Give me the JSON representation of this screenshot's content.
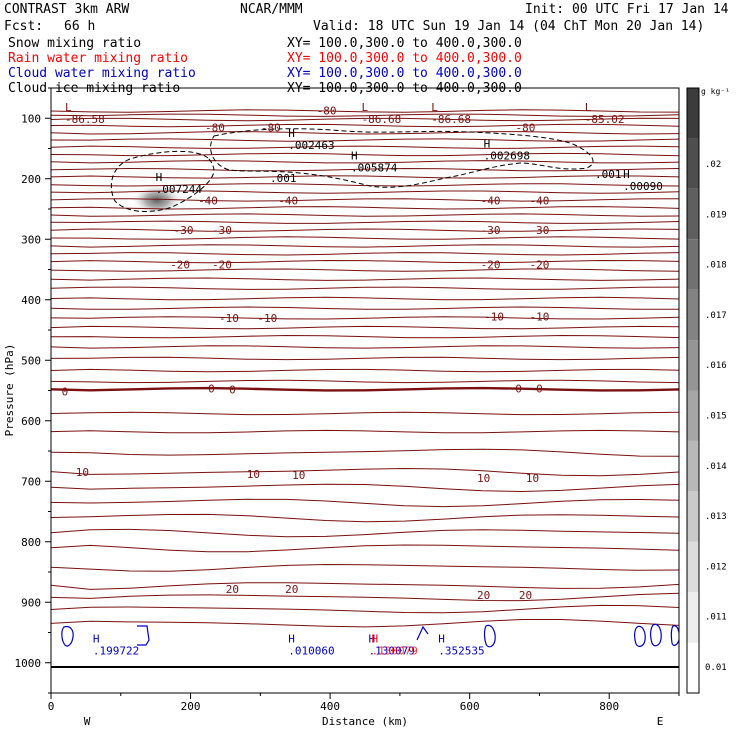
{
  "header": {
    "title_left": "CONTRAST  3km ARW",
    "title_center": "NCAR/MMM",
    "init": "Init: 00 UTC Fri 17 Jan 14",
    "fcst_label": "Fcst:",
    "fcst_value": "66 h",
    "valid": "Valid: 18 UTC Sun 19 Jan 14 (04 ChT Mon 20 Jan 14)"
  },
  "legend": [
    {
      "name": "Snow mixing ratio",
      "xy": "XY= 100.0,300.0 to 400.0,300.0",
      "color": "#000000"
    },
    {
      "name": "Rain water mixing ratio",
      "xy": "XY= 100.0,300.0 to 400.0,300.0",
      "color": "#ff0000"
    },
    {
      "name": "Cloud water mixing ratio",
      "xy": "XY= 100.0,300.0 to 400.0,300.0",
      "color": "#0000cc"
    },
    {
      "name": "Cloud ice mixing ratio",
      "xy": "XY= 100.0,300.0 to 400.0,300.0",
      "color": "#000000"
    }
  ],
  "chart_data": {
    "type": "contour",
    "x_axis": {
      "label": "Distance (km)",
      "range": [
        0,
        900
      ],
      "ticks": [
        0,
        200,
        400,
        600,
        800
      ],
      "left_end": "W",
      "right_end": "E"
    },
    "y_axis": {
      "label": "Pressure (hPa)",
      "range": [
        1050,
        50
      ],
      "ticks": [
        100,
        200,
        300,
        400,
        500,
        600,
        700,
        800,
        900,
        1000
      ],
      "log": false
    },
    "colorbar": {
      "unit": "g kg⁻¹",
      "ticks": [
        "0.01",
        ".011",
        ".012",
        ".013",
        ".014",
        ".015",
        ".016",
        ".017",
        ".018",
        ".019",
        ".02"
      ]
    },
    "temperature_contours": [
      {
        "level": "-80",
        "labels": [
          {
            "text": "-80",
            "x": 395,
            "p": 87
          },
          {
            "text": "-80",
            "x": 235,
            "p": 115
          },
          {
            "text": "-80",
            "x": 315,
            "p": 115
          },
          {
            "text": "-80",
            "x": 680,
            "p": 115
          }
        ]
      },
      {
        "level": "-40",
        "labels": [
          {
            "text": "-40",
            "x": 225,
            "p": 236
          },
          {
            "text": "-40",
            "x": 340,
            "p": 236
          },
          {
            "text": "-40",
            "x": 630,
            "p": 236
          },
          {
            "text": "-40",
            "x": 700,
            "p": 236
          }
        ]
      },
      {
        "level": "-30",
        "labels": [
          {
            "text": "-30",
            "x": 190,
            "p": 285
          },
          {
            "text": "-30",
            "x": 245,
            "p": 285
          },
          {
            "text": "-30",
            "x": 630,
            "p": 285
          },
          {
            "text": "-30",
            "x": 700,
            "p": 285
          }
        ]
      },
      {
        "level": "-20",
        "labels": [
          {
            "text": "-20",
            "x": 185,
            "p": 342
          },
          {
            "text": "-20",
            "x": 245,
            "p": 342
          },
          {
            "text": "-20",
            "x": 630,
            "p": 342
          },
          {
            "text": "-20",
            "x": 700,
            "p": 342
          }
        ]
      },
      {
        "level": "-10",
        "labels": [
          {
            "text": "-10",
            "x": 255,
            "p": 430
          },
          {
            "text": "-10",
            "x": 310,
            "p": 430
          },
          {
            "text": "-10",
            "x": 635,
            "p": 428
          },
          {
            "text": "-10",
            "x": 700,
            "p": 428
          }
        ]
      },
      {
        "level": "0",
        "labels": [
          {
            "text": "0",
            "x": 20,
            "p": 552
          },
          {
            "text": "0",
            "x": 230,
            "p": 547
          },
          {
            "text": "0",
            "x": 260,
            "p": 548
          },
          {
            "text": "0",
            "x": 670,
            "p": 547
          },
          {
            "text": "0",
            "x": 700,
            "p": 547
          }
        ]
      },
      {
        "level": "10",
        "labels": [
          {
            "text": "10",
            "x": 45,
            "p": 685
          },
          {
            "text": "10",
            "x": 290,
            "p": 688
          },
          {
            "text": "10",
            "x": 355,
            "p": 690
          },
          {
            "text": "10",
            "x": 620,
            "p": 695
          },
          {
            "text": "10",
            "x": 690,
            "p": 695
          }
        ]
      },
      {
        "level": "20",
        "labels": [
          {
            "text": "20",
            "x": 260,
            "p": 878
          },
          {
            "text": "20",
            "x": 345,
            "p": 878
          },
          {
            "text": "20",
            "x": 620,
            "p": 888
          },
          {
            "text": "20",
            "x": 680,
            "p": 888
          }
        ]
      }
    ],
    "extrema": [
      {
        "type": "L",
        "value": "-86.58",
        "x": 20,
        "p": 95
      },
      {
        "type": "L",
        "value": "-86.68",
        "x": 445,
        "p": 95
      },
      {
        "type": "L",
        "value": "-86.68",
        "x": 545,
        "p": 95
      },
      {
        "type": "L",
        "value": "-85.02",
        "x": 765,
        "p": 95
      },
      {
        "type": "H",
        "value": ".002463",
        "x": 340,
        "p": 138
      },
      {
        "type": "H",
        "value": ".005874",
        "x": 430,
        "p": 175
      },
      {
        "type": "H",
        "value": ".002698",
        "x": 620,
        "p": 155
      },
      {
        "type": "H",
        "value": ".007244",
        "x": 150,
        "p": 210
      },
      {
        "type": "H",
        "value": ".00090",
        "x": 820,
        "p": 205
      }
    ],
    "cloud_ice_contour_labels": [
      ".001",
      ".001"
    ],
    "cloud_water_extrema": [
      {
        "type": "H",
        "value": ".199722",
        "x": 60,
        "p": 970
      },
      {
        "type": "H",
        "value": ".010060",
        "x": 340,
        "p": 970
      },
      {
        "type": "H",
        "value": ".130079",
        "x": 455,
        "p": 970
      },
      {
        "type": "H",
        "value": ".352535",
        "x": 555,
        "p": 970
      }
    ],
    "rain_water_extrema": [
      {
        "type": "H",
        "value": ".130079",
        "x": 455,
        "p": 970
      }
    ],
    "snow_max_center": {
      "x": 150,
      "p": 225,
      "value": ".02"
    }
  }
}
